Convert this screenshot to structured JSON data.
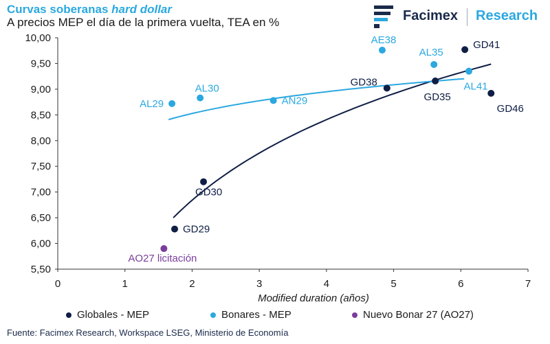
{
  "header": {
    "title_main": "Curvas soberanas",
    "title_emph": "hard dollar",
    "subtitle": "A precios MEP el día de la primera vuelta, TEA en %"
  },
  "brand": {
    "name": "Facimex",
    "research": "Research",
    "name_color": "#1a2a4a",
    "accent": "#2BA8E0"
  },
  "colors": {
    "globales": "#0F1E45",
    "bonares": "#2BA8E0",
    "nuevo": "#7A3E9A",
    "axis": "#333333"
  },
  "chart_data": {
    "type": "scatter",
    "title": "Curvas soberanas hard dollar",
    "subtitle": "A precios MEP el día de la primera vuelta, TEA en %",
    "xlabel": "Modified duration (años)",
    "ylabel": "",
    "xlim": [
      0,
      7
    ],
    "ylim": [
      5.5,
      10.0
    ],
    "xticks": [
      "0",
      "1",
      "2",
      "3",
      "4",
      "5",
      "6",
      "7"
    ],
    "yticks": [
      "5,50",
      "6,00",
      "6,50",
      "7,00",
      "7,50",
      "8,00",
      "8,50",
      "9,00",
      "9,50",
      "10,00"
    ],
    "series": [
      {
        "name": "Globales - MEP",
        "key": "globales",
        "points": [
          {
            "label": "GD29",
            "x": 1.74,
            "y": 6.28
          },
          {
            "label": "GD30",
            "x": 2.17,
            "y": 7.2
          },
          {
            "label": "GD38",
            "x": 4.9,
            "y": 9.02
          },
          {
            "label": "GD35",
            "x": 5.62,
            "y": 9.16
          },
          {
            "label": "GD41",
            "x": 6.06,
            "y": 9.77
          },
          {
            "label": "GD46",
            "x": 6.45,
            "y": 8.92
          }
        ],
        "trend": {
          "x_start": 1.72,
          "x_end": 6.45,
          "ln_a": 6.55,
          "ln_b": 2.26
        }
      },
      {
        "name": "Bonares - MEP",
        "key": "bonares",
        "points": [
          {
            "label": "AL29",
            "x": 1.7,
            "y": 8.72
          },
          {
            "label": "AL30",
            "x": 2.12,
            "y": 8.83
          },
          {
            "label": "AN29",
            "x": 3.21,
            "y": 8.78
          },
          {
            "label": "AE38",
            "x": 4.83,
            "y": 9.76
          },
          {
            "label": "AL35",
            "x": 5.6,
            "y": 9.48
          },
          {
            "label": "AL41",
            "x": 6.12,
            "y": 9.35
          }
        ],
        "trend": {
          "x_start": 1.65,
          "x_end": 6.05,
          "ln_a": 8.41,
          "ln_b": 0.61
        }
      },
      {
        "name": "Nuevo Bonar 27 (AO27)",
        "key": "nuevo",
        "points": [
          {
            "label": "AO27 licitación",
            "x": 1.58,
            "y": 5.9
          }
        ]
      }
    ]
  },
  "source": "Fuente: Facimex Research, Workspace LSEG, Ministerio de Economía"
}
